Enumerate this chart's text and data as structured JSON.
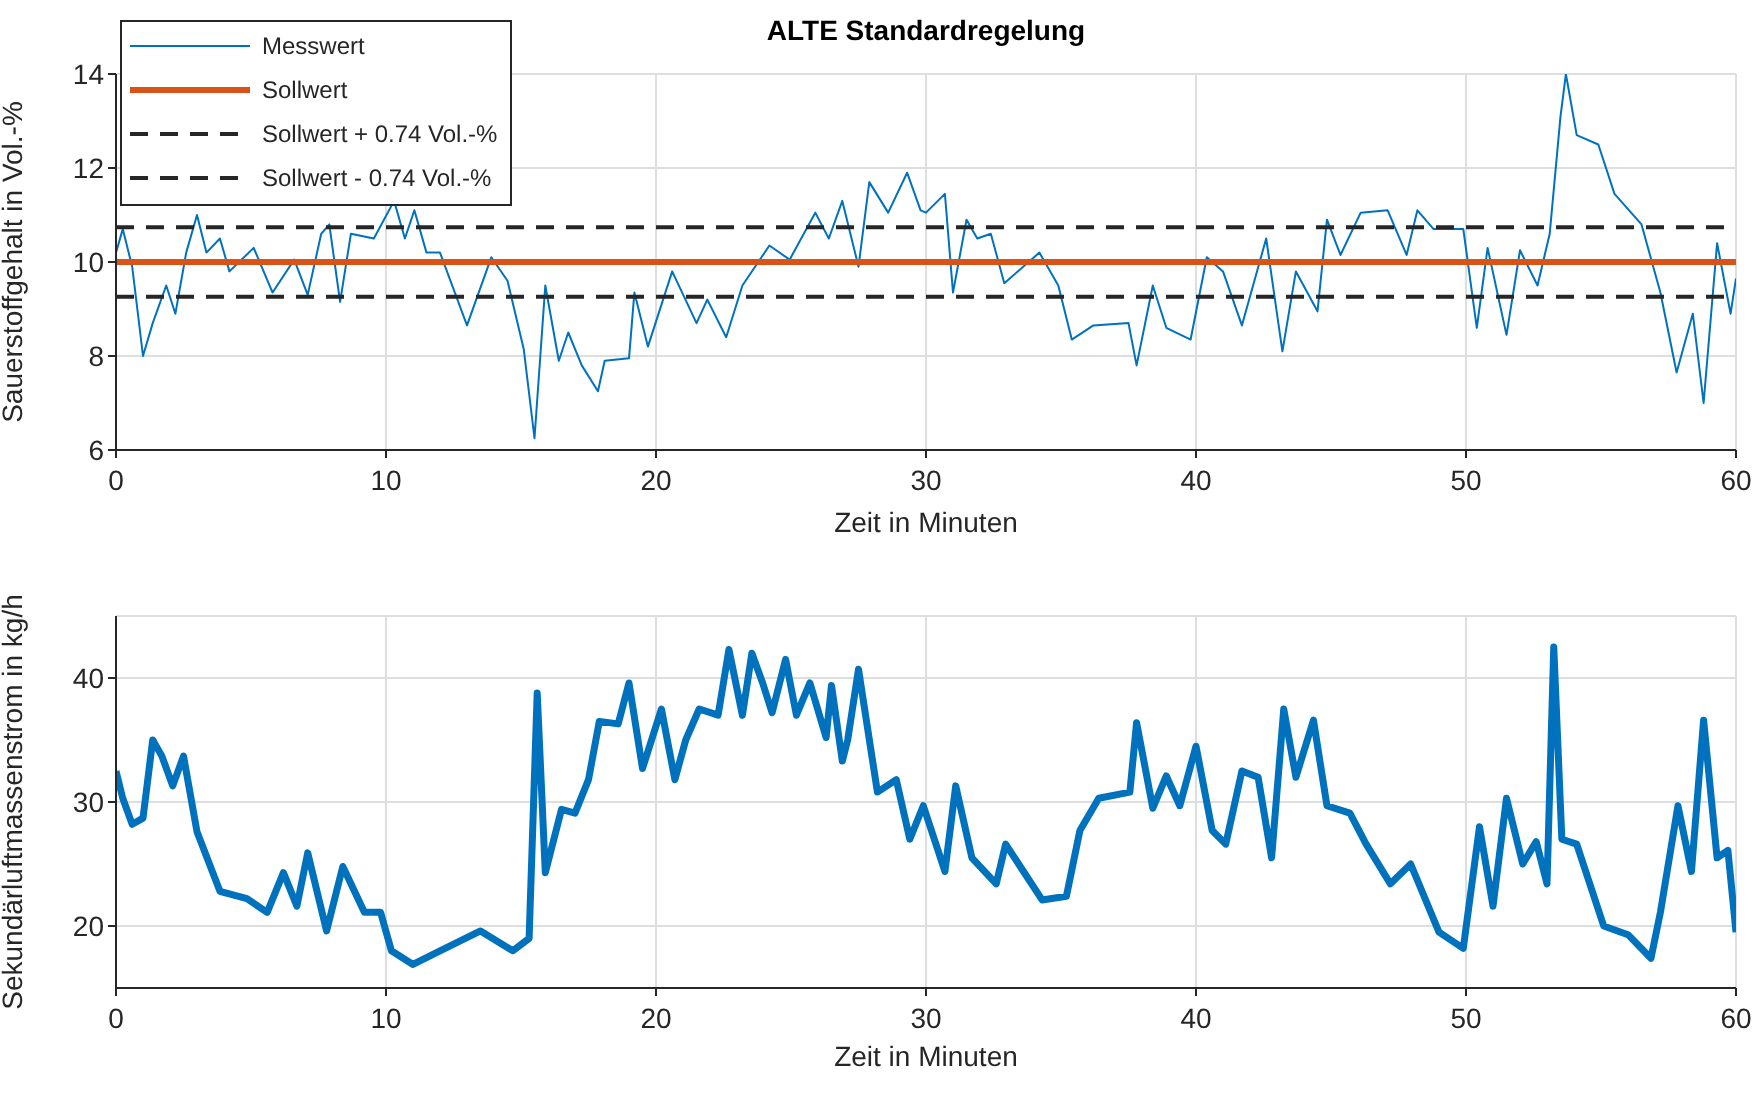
{
  "chart_data": [
    {
      "type": "line",
      "title": "ALTE Standardregelung",
      "xlabel": "Zeit in Minuten",
      "ylabel": "Sauerstoffgehalt in Vol.-%",
      "xlim": [
        0,
        60
      ],
      "xticks": [
        0,
        10,
        20,
        30,
        40,
        50,
        60
      ],
      "ylim": [
        6,
        14
      ],
      "yticks": [
        6,
        8,
        10,
        12,
        14
      ],
      "grid": true,
      "legend": "top left",
      "series": [
        {
          "name": "Messwert",
          "color": "#0072bd",
          "line_style": "solid",
          "x": [
            0,
            0.25,
            0.6,
            1.0,
            1.36,
            1.86,
            2.2,
            2.6,
            3.0,
            3.35,
            3.85,
            4.2,
            5.1,
            5.8,
            6.6,
            7.1,
            7.6,
            7.9,
            8.3,
            8.7,
            9.55,
            10.3,
            10.7,
            11.05,
            11.5,
            12.0,
            13.0,
            13.9,
            14.5,
            15.1,
            15.5,
            15.9,
            16.4,
            16.75,
            17.25,
            17.85,
            18.1,
            19.0,
            19.2,
            19.7,
            20.6,
            21.5,
            21.9,
            22.6,
            23.2,
            24.2,
            24.95,
            25.9,
            26.4,
            26.9,
            27.5,
            27.9,
            28.6,
            29.3,
            29.8,
            30.0,
            30.7,
            31.0,
            31.5,
            31.9,
            32.4,
            32.9,
            34.2,
            34.9,
            35.4,
            36.2,
            37.5,
            37.8,
            38.4,
            38.9,
            39.8,
            40.4,
            41.0,
            41.7,
            42.6,
            43.2,
            43.7,
            44.5,
            44.85,
            45.35,
            46.1,
            47.1,
            47.8,
            48.2,
            48.8,
            49.9,
            50.4,
            50.8,
            51.5,
            52.0,
            52.65,
            53.1,
            53.5,
            53.7,
            54.1,
            54.9,
            55.5,
            56.5,
            57.2,
            57.8,
            58.4,
            58.8,
            59.3,
            59.8,
            60
          ],
          "values": [
            10.2,
            10.7,
            9.9,
            8.0,
            8.7,
            9.5,
            8.9,
            10.2,
            11.0,
            10.2,
            10.5,
            9.8,
            10.3,
            9.35,
            10.05,
            9.3,
            10.6,
            10.8,
            9.15,
            10.6,
            10.5,
            11.3,
            10.5,
            11.1,
            10.2,
            10.2,
            8.65,
            10.1,
            9.6,
            8.15,
            6.25,
            9.5,
            7.9,
            8.5,
            7.8,
            7.25,
            7.9,
            7.95,
            9.35,
            8.2,
            9.8,
            8.7,
            9.2,
            8.4,
            9.5,
            10.35,
            10.05,
            11.05,
            10.5,
            11.3,
            9.9,
            11.7,
            11.05,
            11.9,
            11.1,
            11.05,
            11.45,
            9.35,
            10.9,
            10.5,
            10.6,
            9.55,
            10.2,
            9.5,
            8.35,
            8.65,
            8.7,
            7.8,
            9.5,
            8.6,
            8.35,
            10.1,
            9.8,
            8.65,
            10.5,
            8.1,
            9.8,
            8.95,
            10.9,
            10.15,
            11.05,
            11.1,
            10.15,
            11.1,
            10.7,
            10.7,
            8.6,
            10.3,
            8.45,
            10.25,
            9.5,
            10.6,
            13.1,
            14.0,
            12.7,
            12.5,
            11.45,
            10.8,
            9.35,
            7.65,
            8.9,
            7.0,
            10.4,
            8.9,
            9.65
          ]
        },
        {
          "name": "Sollwert",
          "color": "#d95319",
          "line_style": "solid",
          "x": [
            0,
            60
          ],
          "values": [
            10,
            10
          ]
        },
        {
          "name": "Sollwert + 0.74 Vol.-%",
          "color": "#262626",
          "line_style": "dashed",
          "x": [
            0,
            60
          ],
          "values": [
            10.74,
            10.74
          ]
        },
        {
          "name": "Sollwert - 0.74 Vol.-%",
          "color": "#262626",
          "line_style": "dashed",
          "x": [
            0,
            60
          ],
          "values": [
            9.26,
            9.26
          ]
        }
      ]
    },
    {
      "type": "line",
      "xlabel": "Zeit in Minuten",
      "ylabel": "Sekundärluftmassenstrom in kg/h",
      "xlim": [
        0,
        60
      ],
      "xticks": [
        0,
        10,
        20,
        30,
        40,
        50,
        60
      ],
      "ylim": [
        15,
        45
      ],
      "yticks": [
        20,
        30,
        40
      ],
      "grid": true,
      "series": [
        {
          "color": "#0072bd",
          "line_style": "solid",
          "x": [
            0,
            0.25,
            0.6,
            1.0,
            1.36,
            1.7,
            2.1,
            2.5,
            3.0,
            3.85,
            4.85,
            5.6,
            6.2,
            6.7,
            7.1,
            7.8,
            8.4,
            9.2,
            9.8,
            10.2,
            11.0,
            12.0,
            13.5,
            14.7,
            15.3,
            15.6,
            15.9,
            16.5,
            17.0,
            17.5,
            17.9,
            18.6,
            19.0,
            19.5,
            20.2,
            20.7,
            21.1,
            21.6,
            22.3,
            22.7,
            23.2,
            23.55,
            23.95,
            24.3,
            24.8,
            25.2,
            25.7,
            26.3,
            26.5,
            26.9,
            27.1,
            27.5,
            28.2,
            28.9,
            29.4,
            29.9,
            30.7,
            31.1,
            31.7,
            32.6,
            32.95,
            34.3,
            35.2,
            35.7,
            36.4,
            37.55,
            37.8,
            38.4,
            38.9,
            39.4,
            40.0,
            40.6,
            41.1,
            41.7,
            42.3,
            42.8,
            43.25,
            43.7,
            44.35,
            44.85,
            45.7,
            46.3,
            47.2,
            47.95,
            49.0,
            49.9,
            50.5,
            51.0,
            51.5,
            52.1,
            52.6,
            53.0,
            53.25,
            53.55,
            54.1,
            55.1,
            56.0,
            56.85,
            57.2,
            57.85,
            58.35,
            58.8,
            59.3,
            59.7,
            60
          ],
          "values": [
            32.5,
            30.3,
            28.2,
            28.7,
            35.0,
            33.7,
            31.3,
            33.7,
            27.6,
            22.8,
            22.2,
            21.1,
            24.3,
            21.6,
            25.9,
            19.6,
            24.8,
            21.1,
            21.1,
            18.0,
            16.9,
            18.0,
            19.6,
            18.0,
            19.0,
            38.8,
            24.3,
            29.4,
            29.1,
            31.8,
            36.5,
            36.3,
            39.6,
            32.7,
            37.5,
            31.8,
            35.0,
            37.5,
            37.0,
            42.3,
            37.0,
            42.0,
            39.6,
            37.2,
            41.5,
            37.0,
            39.6,
            35.2,
            39.4,
            33.3,
            35.0,
            40.7,
            30.8,
            31.8,
            27.0,
            29.7,
            24.4,
            31.3,
            25.5,
            23.4,
            26.6,
            22.1,
            22.4,
            27.7,
            30.3,
            30.8,
            36.4,
            29.5,
            32.1,
            29.7,
            34.5,
            27.7,
            26.6,
            32.5,
            32.0,
            25.5,
            37.5,
            32.0,
            36.6,
            29.7,
            29.1,
            26.6,
            23.4,
            25.0,
            19.5,
            18.2,
            28.0,
            21.6,
            30.3,
            25.0,
            26.8,
            23.4,
            42.5,
            27.0,
            26.6,
            20.0,
            19.3,
            17.4,
            21.1,
            29.7,
            24.4,
            36.6,
            25.5,
            26.1,
            19.5
          ]
        }
      ]
    }
  ]
}
